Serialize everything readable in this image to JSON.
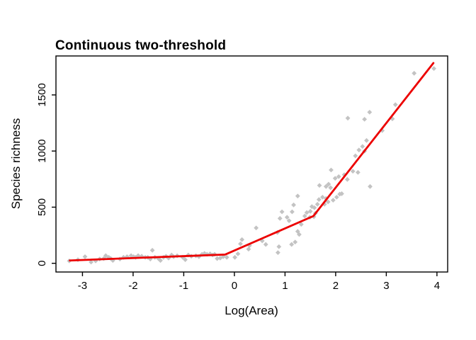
{
  "chart_data": {
    "type": "scatter",
    "title": "Continuous two-threshold",
    "xlabel": "Log(Area)",
    "ylabel": "Species richness",
    "xlim": [
      -3.5,
      4.2
    ],
    "ylim": [
      -75,
      1850
    ],
    "x_ticks": [
      -3,
      -2,
      -1,
      0,
      1,
      2,
      3,
      4
    ],
    "y_ticks": [
      0,
      500,
      1000,
      1500
    ],
    "grid": false,
    "legend": "none",
    "point_color": "#c3c3c3",
    "line_color": "#ec0000",
    "axis_color": "#000000",
    "points": [
      [
        -3.26,
        21
      ],
      [
        -3.09,
        32
      ],
      [
        -2.95,
        59
      ],
      [
        -2.83,
        11
      ],
      [
        -2.74,
        21
      ],
      [
        -2.66,
        38
      ],
      [
        -2.58,
        42
      ],
      [
        -2.54,
        68
      ],
      [
        -2.48,
        53
      ],
      [
        -2.44,
        42
      ],
      [
        -2.4,
        25
      ],
      [
        -2.26,
        38
      ],
      [
        -2.19,
        53
      ],
      [
        -2.12,
        59
      ],
      [
        -2.04,
        68
      ],
      [
        -1.99,
        59
      ],
      [
        -1.95,
        53
      ],
      [
        -1.9,
        68
      ],
      [
        -1.83,
        63
      ],
      [
        -1.76,
        53
      ],
      [
        -1.71,
        53
      ],
      [
        -1.66,
        38
      ],
      [
        -1.62,
        116
      ],
      [
        -1.57,
        53
      ],
      [
        -1.5,
        42
      ],
      [
        -1.46,
        25
      ],
      [
        -1.4,
        53
      ],
      [
        -1.35,
        63
      ],
      [
        -1.3,
        46
      ],
      [
        -1.24,
        74
      ],
      [
        -1.2,
        59
      ],
      [
        -1.13,
        67
      ],
      [
        -1.02,
        53
      ],
      [
        -0.97,
        32
      ],
      [
        -0.91,
        74
      ],
      [
        -0.85,
        63
      ],
      [
        -0.76,
        67
      ],
      [
        -0.7,
        59
      ],
      [
        -0.64,
        80
      ],
      [
        -0.59,
        88
      ],
      [
        -0.54,
        80
      ],
      [
        -0.48,
        84
      ],
      [
        -0.43,
        74
      ],
      [
        -0.39,
        80
      ],
      [
        -0.34,
        42
      ],
      [
        -0.28,
        46
      ],
      [
        -0.22,
        59
      ],
      [
        -0.15,
        53
      ],
      [
        0.01,
        53
      ],
      [
        0.07,
        84
      ],
      [
        0.12,
        173
      ],
      [
        0.15,
        211
      ],
      [
        0.28,
        126
      ],
      [
        0.3,
        158
      ],
      [
        0.43,
        315
      ],
      [
        0.55,
        200
      ],
      [
        0.62,
        168
      ],
      [
        0.85,
        274
      ],
      [
        0.86,
        95
      ],
      [
        0.88,
        148
      ],
      [
        0.9,
        400
      ],
      [
        0.94,
        459
      ],
      [
        1.04,
        410
      ],
      [
        1.08,
        379
      ],
      [
        1.13,
        168
      ],
      [
        1.14,
        459
      ],
      [
        1.17,
        520
      ],
      [
        1.2,
        189
      ],
      [
        1.25,
        284
      ],
      [
        1.25,
        599
      ],
      [
        1.28,
        257
      ],
      [
        1.32,
        347
      ],
      [
        1.39,
        421
      ],
      [
        1.43,
        452
      ],
      [
        1.49,
        410
      ],
      [
        1.5,
        463
      ],
      [
        1.53,
        505
      ],
      [
        1.57,
        415
      ],
      [
        1.58,
        495
      ],
      [
        1.6,
        446
      ],
      [
        1.64,
        526
      ],
      [
        1.67,
        568
      ],
      [
        1.68,
        694
      ],
      [
        1.74,
        589
      ],
      [
        1.78,
        526
      ],
      [
        1.81,
        578
      ],
      [
        1.81,
        684
      ],
      [
        1.85,
        547
      ],
      [
        1.86,
        705
      ],
      [
        1.9,
        673
      ],
      [
        1.91,
        831
      ],
      [
        1.95,
        562
      ],
      [
        1.99,
        757
      ],
      [
        2.02,
        589
      ],
      [
        2.06,
        772
      ],
      [
        2.08,
        616
      ],
      [
        2.12,
        620
      ],
      [
        2.17,
        789
      ],
      [
        2.23,
        747
      ],
      [
        2.24,
        1293
      ],
      [
        2.34,
        820
      ],
      [
        2.39,
        957
      ],
      [
        2.44,
        810
      ],
      [
        2.46,
        1009
      ],
      [
        2.53,
        1041
      ],
      [
        2.57,
        999
      ],
      [
        2.57,
        1283
      ],
      [
        2.61,
        1094
      ],
      [
        2.67,
        1346
      ],
      [
        2.68,
        684
      ],
      [
        2.92,
        1182
      ],
      [
        3.12,
        1287
      ],
      [
        3.18,
        1413
      ],
      [
        3.55,
        1693
      ],
      [
        3.94,
        1735
      ]
    ],
    "fit_line": {
      "name": "continuous two-threshold piecewise fit",
      "vertices": [
        [
          -3.25,
          25
        ],
        [
          -0.18,
          78
        ],
        [
          1.56,
          421
        ],
        [
          3.93,
          1784
        ]
      ]
    }
  }
}
